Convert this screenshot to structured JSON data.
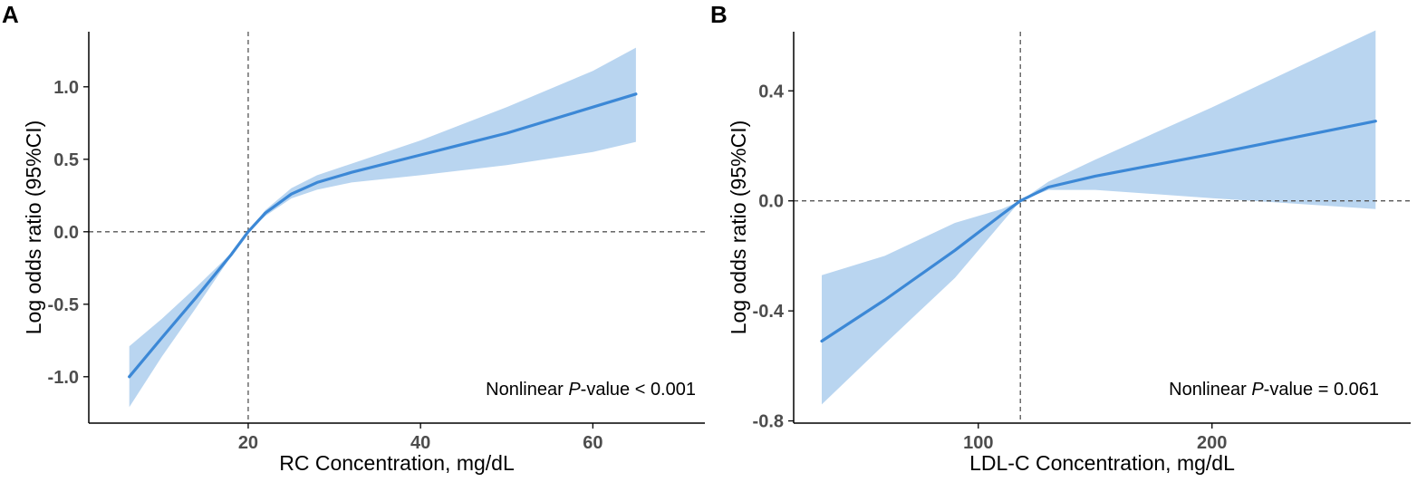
{
  "colors": {
    "line": "#3c88d6",
    "band": "#b9d5f0",
    "axis": "#000000",
    "ref": "#555555"
  },
  "chart_data": [
    {
      "type": "line",
      "panel": "A",
      "xlabel": "RC Concentration, mg/dL",
      "ylabel": "Log odds ratio (95%CI)",
      "xlim": [
        1.5,
        73
      ],
      "ylim": [
        -1.32,
        1.38
      ],
      "xticks": [
        20,
        40,
        60
      ],
      "yticks": [
        -1.0,
        -0.5,
        0.0,
        0.5,
        1.0
      ],
      "ytick_labels": [
        "-1.0",
        "-0.5",
        "0.0",
        "0.5",
        "1.0"
      ],
      "ref_x": 20,
      "ref_y": 0,
      "annotation": {
        "prefix": "Nonlinear ",
        "italic": "P",
        "suffix": "-value < 0.001"
      },
      "x": [
        6.2,
        10,
        14,
        18,
        20,
        22,
        25,
        28,
        32,
        40,
        50,
        60,
        65
      ],
      "y": [
        -1.0,
        -0.73,
        -0.45,
        -0.16,
        0.0,
        0.13,
        0.26,
        0.34,
        0.41,
        0.53,
        0.68,
        0.86,
        0.95
      ],
      "lower": [
        -1.21,
        -0.86,
        -0.52,
        -0.17,
        0.0,
        0.11,
        0.23,
        0.29,
        0.34,
        0.39,
        0.46,
        0.55,
        0.62
      ],
      "upper": [
        -0.79,
        -0.6,
        -0.38,
        -0.15,
        0.0,
        0.15,
        0.3,
        0.39,
        0.47,
        0.63,
        0.86,
        1.11,
        1.27
      ]
    },
    {
      "type": "line",
      "panel": "B",
      "xlabel": "LDL-C Concentration, mg/dL",
      "ylabel": "Log odds ratio (95%CI)",
      "xlim": [
        21,
        285
      ],
      "ylim": [
        -0.808,
        0.615
      ],
      "xticks": [
        100,
        200
      ],
      "yticks": [
        -0.8,
        -0.4,
        0.0,
        0.4
      ],
      "ytick_labels": [
        "-0.8",
        "-0.4",
        "0.0",
        "0.4"
      ],
      "ref_x": 118,
      "ref_y": 0,
      "annotation": {
        "prefix": "Nonlinear ",
        "italic": "P",
        "suffix": "-value = 0.061"
      },
      "x": [
        33,
        60,
        90,
        110,
        118,
        130,
        150,
        200,
        270
      ],
      "y": [
        -0.51,
        -0.36,
        -0.18,
        -0.05,
        0.0,
        0.05,
        0.09,
        0.17,
        0.29
      ],
      "lower": [
        -0.74,
        -0.52,
        -0.28,
        -0.08,
        0.0,
        0.04,
        0.04,
        0.01,
        -0.03
      ],
      "upper": [
        -0.27,
        -0.2,
        -0.08,
        -0.03,
        0.0,
        0.07,
        0.15,
        0.34,
        0.62
      ]
    }
  ]
}
